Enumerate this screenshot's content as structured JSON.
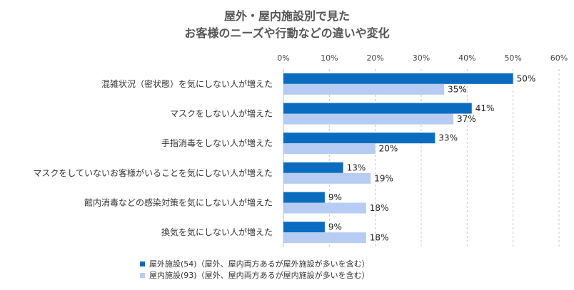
{
  "chart_data": {
    "type": "bar",
    "orientation": "horizontal",
    "title_line1": "屋外・屋内施設別で見た",
    "title_line2": "お客様のニーズや行動などの違いや変化",
    "categories": [
      "混雑状況（密状態）を気にしない人が増えた",
      "マスクをしない人が増えた",
      "手指消毒をしない人が増えた",
      "マスクをしていないお客様がいることを気にしない人が増えた",
      "館内消毒などの感染対策を気にしない人が増えた",
      "換気を気にしない人が増えた"
    ],
    "series": [
      {
        "name": "屋外施設(54)（屋外、屋内両方あるが屋外施設が多いを含む）",
        "color": "#0a6cbf",
        "values": [
          50,
          41,
          33,
          13,
          9,
          9
        ]
      },
      {
        "name": "屋内施設(93)（屋外、屋内両方あるが屋内施設が多いを含む）",
        "color": "#b6ccf3",
        "values": [
          35,
          37,
          20,
          19,
          18,
          18
        ]
      }
    ],
    "x_ticks": [
      "0%",
      "10%",
      "20%",
      "30%",
      "40%",
      "50%",
      "60%"
    ],
    "xlim": [
      0,
      60
    ],
    "value_suffix": "%",
    "grid": true,
    "legend_position": "bottom-left"
  }
}
